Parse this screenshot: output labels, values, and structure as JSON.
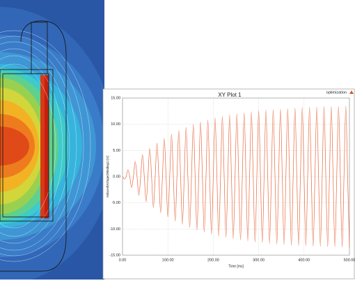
{
  "chart_data": {
    "type": "line",
    "title": "XY Plot 1",
    "annotation": "optimization",
    "xlabel": "Time [ms]",
    "ylabel": "InducedVoltage(Winding1) [V]",
    "x": [
      0,
      4,
      8,
      12,
      16,
      20,
      24,
      28,
      32,
      36,
      40,
      44,
      48,
      52,
      56,
      60,
      64,
      68,
      72,
      76,
      80,
      84,
      88,
      92,
      96,
      100,
      104,
      108,
      112,
      116,
      120,
      124,
      128,
      132,
      136,
      140,
      144,
      148,
      152,
      156,
      160,
      164,
      168,
      172,
      176,
      180,
      184,
      188,
      192,
      196,
      200,
      204,
      208,
      212,
      216,
      220,
      224,
      228,
      232,
      236,
      240,
      244,
      248,
      252,
      256,
      260,
      264,
      268,
      272,
      276,
      280,
      284,
      288,
      292,
      296,
      300,
      304,
      308,
      312,
      316,
      320,
      324,
      328,
      332,
      336,
      340,
      344,
      348,
      352,
      356,
      360,
      364,
      368,
      372,
      376,
      380,
      384,
      388,
      392,
      396,
      400,
      404,
      408,
      412,
      416,
      420,
      424,
      428,
      432,
      436,
      440,
      444,
      448,
      452,
      456,
      460,
      464,
      468,
      472,
      476,
      480,
      484,
      488,
      492,
      496,
      500
    ],
    "series": [
      {
        "name": "optimization",
        "color": "#e8663a",
        "values": [
          0,
          -0.45,
          0,
          1.3,
          0,
          -2.1,
          0,
          2.85,
          0,
          -3.55,
          0,
          4.2,
          0,
          -4.8,
          0,
          5.4,
          0,
          -5.9,
          0,
          6.4,
          0,
          -6.9,
          0,
          7.3,
          0,
          -7.7,
          0,
          8.1,
          0,
          -8.5,
          0,
          8.8,
          0,
          -9.1,
          0,
          9.4,
          0,
          -9.7,
          0,
          10.0,
          0,
          -10.2,
          0,
          10.4,
          0,
          -10.6,
          0,
          10.8,
          0,
          -11.0,
          0,
          11.2,
          0,
          -11.4,
          0,
          11.5,
          0,
          -11.6,
          0,
          11.8,
          0,
          -11.9,
          0,
          12.0,
          0,
          -12.1,
          0,
          12.2,
          0,
          -12.3,
          0,
          12.4,
          0,
          -12.5,
          0,
          12.6,
          0,
          -12.6,
          0,
          12.7,
          0,
          -12.8,
          0,
          12.8,
          0,
          -12.9,
          0,
          12.9,
          0,
          -13.0,
          0,
          13.0,
          0,
          -13.1,
          0,
          13.1,
          0,
          -13.2,
          0,
          13.2,
          0,
          -13.2,
          0,
          13.3,
          0,
          -13.3,
          0,
          13.3,
          0,
          -13.3,
          0,
          13.4,
          0,
          -13.4,
          0,
          13.4,
          0,
          -13.4,
          0,
          13.4,
          0,
          -13.5,
          0,
          13.5,
          0,
          -13.5
        ]
      }
    ],
    "xlim": [
      0,
      500
    ],
    "xticks": [
      {
        "value": 0,
        "label": "0.00"
      },
      {
        "value": 100,
        "label": "100.00"
      },
      {
        "value": 200,
        "label": "200.00"
      },
      {
        "value": 300,
        "label": "300.00"
      },
      {
        "value": 400,
        "label": "400.00"
      },
      {
        "value": 500,
        "label": "500.00"
      }
    ],
    "ylim": [
      -15,
      15
    ],
    "yticks": [
      {
        "value": -15,
        "label": "-15.00"
      },
      {
        "value": -10,
        "label": "-10.00"
      },
      {
        "value": -5,
        "label": "-5.00"
      },
      {
        "value": 0,
        "label": "0.00"
      },
      {
        "value": 5,
        "label": "5.00"
      },
      {
        "value": 10,
        "label": "10.00"
      },
      {
        "value": 15,
        "label": "15.00"
      }
    ],
    "grid": true
  }
}
